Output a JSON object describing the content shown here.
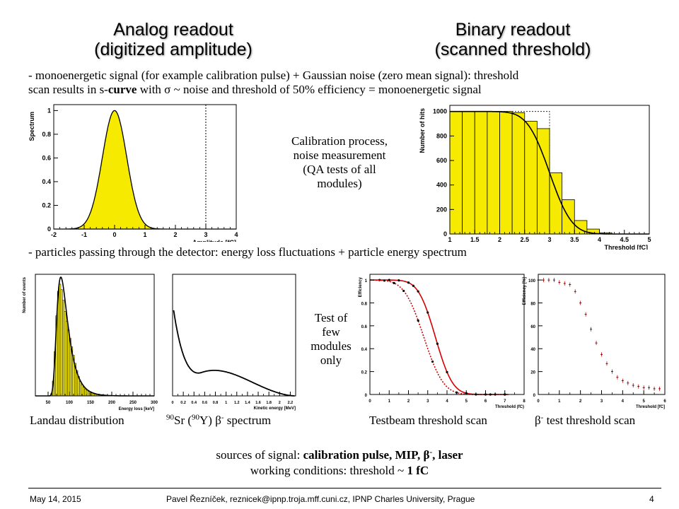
{
  "titles": {
    "left_line1": "Analog readout",
    "left_line2": "(digitized amplitude)",
    "right_line1": "Binary readout",
    "right_line2": "(scanned threshold)"
  },
  "bullet1": {
    "line1": "- monoenergetic signal (for example calibration pulse) + Gaussian noise (zero mean signal): threshold",
    "line2_a": "scan results in s-",
    "line2_bold": "curve",
    "line2_b": " with σ ~ noise and threshold of 50% efficiency = monoenergetic signal"
  },
  "calibration_text": {
    "line1": "Calibration process,",
    "line2": "noise measurement",
    "line3": "(QA tests of all",
    "line4": "modules)"
  },
  "bullet2": "- particles passing through the detector: energy loss fluctuations + particle energy spectrum",
  "test_text": {
    "line1": "Test of",
    "line2": "few",
    "line3": "modules",
    "line4": "only"
  },
  "captions": {
    "landau": "Landau distribution",
    "sr_pre": "90",
    "sr_a": "Sr (",
    "sr_sup2": "90",
    "sr_b": "Y) β",
    "sr_sup3": "-",
    "sr_c": " spectrum",
    "testbeam": "Testbeam threshold scan",
    "beta_a": "β",
    "beta_sup": "-",
    "beta_b": " test threshold scan"
  },
  "sources": {
    "line1_a": "sources of signal: ",
    "line1_bold": "calibration pulse, MIP, β",
    "line1_sup": "-",
    "line1_bold2": ", laser",
    "line2_a": "working conditions: threshold ~ ",
    "line2_bold": "1 fC"
  },
  "footer": {
    "date": "May 14, 2015",
    "author": "Pavel Řezníček, reznicek@ipnp.troja.mff.cuni.cz, IPNP Charles University, Prague",
    "page": "4"
  },
  "colors": {
    "fill_yellow": "#f5ea00",
    "red": "#d40000"
  },
  "chart_data": [
    {
      "type": "area",
      "ylabel": "Spectrum",
      "xlabel": "Amplitude [fC]",
      "xlim": [
        -2,
        4
      ],
      "ylim": [
        0,
        1.05
      ],
      "xticks": [
        "-2",
        "-1",
        "0",
        "1",
        "2",
        "3",
        "4"
      ],
      "yticks": [
        "0",
        "0.2",
        "0.4",
        "0.6",
        "0.8",
        "1"
      ],
      "gaussian": {
        "mean": 0,
        "sigma": 0.4
      },
      "threshold_line_x": 3
    },
    {
      "type": "bar",
      "ylabel": "Number of hits",
      "xlabel": "Threshold [fC]",
      "xlim": [
        1,
        5
      ],
      "ylim": [
        0,
        1050
      ],
      "xticks": [
        "1",
        "1.5",
        "2",
        "2.5",
        "3",
        "3.5",
        "4",
        "4.5",
        "5"
      ],
      "yticks": [
        "0",
        "200",
        "400",
        "600",
        "800",
        "1000"
      ],
      "bin_edges": [
        1,
        1.25,
        1.5,
        1.75,
        2,
        2.25,
        2.5,
        2.75,
        3,
        3.25,
        3.5,
        3.75,
        4,
        4.25,
        4.5,
        4.75,
        5
      ],
      "counts": [
        1000,
        1000,
        1000,
        1000,
        1000,
        990,
        920,
        860,
        500,
        280,
        110,
        40,
        10,
        0,
        0,
        0
      ],
      "fit": {
        "mean": 3.0,
        "sigma": 0.35,
        "max": 1000
      }
    },
    {
      "type": "bar",
      "ylabel": "Number of events",
      "xlabel": "Energy loss [keV]",
      "xlim": [
        20,
        300
      ],
      "xticks": [
        "50",
        "100",
        "150",
        "200",
        "250",
        "300"
      ],
      "landau_mpv": 80
    },
    {
      "type": "line",
      "xlabel": "Kinetic energy [MeV]",
      "xlim": [
        0,
        2.3
      ],
      "xticks": [
        "0",
        "0.2",
        "0.4",
        "0.6",
        "0.8",
        "1",
        "1.2",
        "1.4",
        "1.6",
        "1.8",
        "2",
        "2.2"
      ]
    },
    {
      "type": "line",
      "ylabel": "Efficiency",
      "xlabel": "Threshold (fC)",
      "xlim": [
        0,
        8
      ],
      "ylim": [
        0,
        1.05
      ],
      "xticks": [
        "0",
        "1",
        "2",
        "3",
        "4",
        "5",
        "6",
        "7",
        "8"
      ],
      "yticks": [
        "0",
        "0.2",
        "0.4",
        "0.6",
        "0.8",
        "1"
      ],
      "series": [
        {
          "mean": 3.4,
          "sigma": 0.7,
          "style": "solid"
        },
        {
          "mean": 2.8,
          "sigma": 0.8,
          "style": "dotted"
        }
      ]
    },
    {
      "type": "scatter",
      "ylabel": "Efficiency [%]",
      "xlabel": "Threshold [fC]",
      "xlim": [
        0,
        6
      ],
      "ylim": [
        0,
        105
      ],
      "xticks": [
        "0",
        "1",
        "2",
        "3",
        "4",
        "5",
        "6"
      ],
      "yticks": [
        "0",
        "20",
        "40",
        "60",
        "80",
        "100"
      ],
      "x": [
        0,
        0.25,
        0.5,
        0.75,
        1,
        1.25,
        1.5,
        1.75,
        2,
        2.25,
        2.5,
        2.75,
        3,
        3.25,
        3.5,
        3.75,
        4,
        4.25,
        4.5,
        4.75,
        5,
        5.25,
        5.5,
        5.75
      ],
      "y": [
        100,
        100,
        100,
        100,
        98,
        97,
        96,
        90,
        80,
        70,
        57,
        45,
        35,
        27,
        20,
        15,
        12,
        10,
        8,
        7,
        6,
        6,
        5,
        5
      ]
    }
  ]
}
